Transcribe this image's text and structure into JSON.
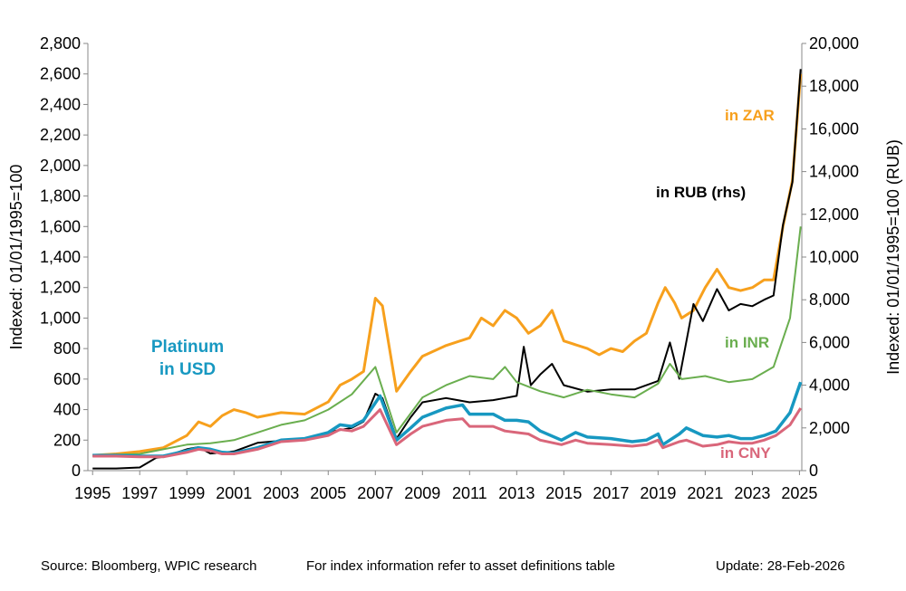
{
  "chart_data": {
    "type": "line",
    "xlim": [
      1994.8,
      2025.1
    ],
    "ylim_left": [
      0,
      2800
    ],
    "ylim_right": [
      0,
      20000
    ],
    "x_ticks": [
      1995,
      1997,
      1999,
      2001,
      2003,
      2005,
      2007,
      2009,
      2011,
      2013,
      2015,
      2017,
      2019,
      2021,
      2023,
      2025
    ],
    "y_ticks_left": [
      "0",
      "200",
      "400",
      "600",
      "800",
      "1,000",
      "1,200",
      "1,400",
      "1,600",
      "1,800",
      "2,000",
      "2,200",
      "2,400",
      "2,600",
      "2,800"
    ],
    "y_ticks_right": [
      "0",
      "2,000",
      "4,000",
      "6,000",
      "8,000",
      "10,000",
      "12,000",
      "14,000",
      "16,000",
      "18,000",
      "20,000"
    ],
    "ylabel_left": "Indexed: 01/01/1995=100",
    "ylabel_right": "Indexed: 01/01/1995=100 (RUB)",
    "grid": false,
    "series": [
      {
        "name": "in ZAR",
        "axis": "left",
        "color": "#F7A01D",
        "width": 3,
        "points": [
          [
            1995,
            100
          ],
          [
            1996,
            110
          ],
          [
            1997,
            125
          ],
          [
            1998,
            150
          ],
          [
            1999,
            230
          ],
          [
            1999.5,
            320
          ],
          [
            2000,
            290
          ],
          [
            2000.5,
            360
          ],
          [
            2001,
            400
          ],
          [
            2001.5,
            380
          ],
          [
            2002,
            350
          ],
          [
            2003,
            380
          ],
          [
            2004,
            370
          ],
          [
            2005,
            450
          ],
          [
            2005.5,
            560
          ],
          [
            2006,
            600
          ],
          [
            2006.5,
            650
          ],
          [
            2007,
            1130
          ],
          [
            2007.3,
            1080
          ],
          [
            2007.9,
            520
          ],
          [
            2008.5,
            650
          ],
          [
            2009,
            750
          ],
          [
            2010,
            820
          ],
          [
            2011,
            870
          ],
          [
            2011.5,
            1000
          ],
          [
            2012,
            950
          ],
          [
            2012.5,
            1050
          ],
          [
            2013,
            1000
          ],
          [
            2013.5,
            900
          ],
          [
            2014,
            950
          ],
          [
            2014.5,
            1050
          ],
          [
            2015,
            850
          ],
          [
            2016,
            800
          ],
          [
            2016.5,
            760
          ],
          [
            2017,
            800
          ],
          [
            2017.5,
            780
          ],
          [
            2018,
            850
          ],
          [
            2018.5,
            900
          ],
          [
            2019,
            1100
          ],
          [
            2019.3,
            1200
          ],
          [
            2019.7,
            1100
          ],
          [
            2020,
            1000
          ],
          [
            2020.5,
            1050
          ],
          [
            2021,
            1200
          ],
          [
            2021.5,
            1320
          ],
          [
            2022,
            1200
          ],
          [
            2022.5,
            1180
          ],
          [
            2023,
            1200
          ],
          [
            2023.5,
            1250
          ],
          [
            2023.9,
            1250
          ],
          [
            2024.3,
            1600
          ],
          [
            2024.7,
            1900
          ],
          [
            2025.05,
            2600
          ]
        ]
      },
      {
        "name": "in RUB (rhs)",
        "axis": "right",
        "color": "#000000",
        "width": 2,
        "points": [
          [
            1995,
            100
          ],
          [
            1996,
            100
          ],
          [
            1997,
            150
          ],
          [
            1997.7,
            600
          ],
          [
            1998,
            650
          ],
          [
            1999,
            1000
          ],
          [
            1999.5,
            1100
          ],
          [
            2000,
            800
          ],
          [
            2001,
            900
          ],
          [
            2002,
            1300
          ],
          [
            2003,
            1400
          ],
          [
            2004,
            1500
          ],
          [
            2005,
            1800
          ],
          [
            2006,
            2000
          ],
          [
            2006.5,
            2300
          ],
          [
            2007,
            3600
          ],
          [
            2007.3,
            3400
          ],
          [
            2007.9,
            1500
          ],
          [
            2008.5,
            2500
          ],
          [
            2009,
            3200
          ],
          [
            2010,
            3400
          ],
          [
            2011,
            3200
          ],
          [
            2012,
            3300
          ],
          [
            2012.5,
            3400
          ],
          [
            2013,
            3500
          ],
          [
            2013.3,
            5800
          ],
          [
            2013.6,
            4000
          ],
          [
            2014,
            4500
          ],
          [
            2014.5,
            5000
          ],
          [
            2015,
            4000
          ],
          [
            2016,
            3700
          ],
          [
            2017,
            3800
          ],
          [
            2018,
            3800
          ],
          [
            2019,
            4200
          ],
          [
            2019.5,
            6000
          ],
          [
            2019.9,
            4300
          ],
          [
            2020.5,
            7800
          ],
          [
            2020.9,
            7000
          ],
          [
            2021.5,
            8500
          ],
          [
            2022,
            7500
          ],
          [
            2022.5,
            7800
          ],
          [
            2023,
            7700
          ],
          [
            2023.5,
            8000
          ],
          [
            2023.9,
            8200
          ],
          [
            2024.3,
            11500
          ],
          [
            2024.7,
            13500
          ],
          [
            2025.05,
            18800
          ]
        ]
      },
      {
        "name": "in INR",
        "axis": "left",
        "color": "#6AAE4F",
        "width": 2,
        "points": [
          [
            1995,
            100
          ],
          [
            1997,
            110
          ],
          [
            1999,
            170
          ],
          [
            2000,
            180
          ],
          [
            2001,
            200
          ],
          [
            2002,
            250
          ],
          [
            2003,
            300
          ],
          [
            2004,
            330
          ],
          [
            2005,
            400
          ],
          [
            2006,
            500
          ],
          [
            2007,
            680
          ],
          [
            2007.9,
            250
          ],
          [
            2009,
            480
          ],
          [
            2010,
            560
          ],
          [
            2011,
            620
          ],
          [
            2012,
            600
          ],
          [
            2012.5,
            680
          ],
          [
            2013,
            580
          ],
          [
            2014,
            520
          ],
          [
            2015,
            480
          ],
          [
            2016,
            530
          ],
          [
            2017,
            500
          ],
          [
            2018,
            480
          ],
          [
            2019,
            570
          ],
          [
            2019.5,
            700
          ],
          [
            2020,
            600
          ],
          [
            2021,
            620
          ],
          [
            2022,
            580
          ],
          [
            2023,
            600
          ],
          [
            2023.9,
            680
          ],
          [
            2024.6,
            1000
          ],
          [
            2025.05,
            1600
          ]
        ]
      },
      {
        "name": "Platinum in USD",
        "axis": "left",
        "color": "#1798C1",
        "width": 3.5,
        "points": [
          [
            1995,
            100
          ],
          [
            1996,
            100
          ],
          [
            1997,
            95
          ],
          [
            1998,
            95
          ],
          [
            1999,
            130
          ],
          [
            1999.5,
            150
          ],
          [
            2000,
            140
          ],
          [
            2000.5,
            120
          ],
          [
            2001,
            115
          ],
          [
            2002,
            150
          ],
          [
            2003,
            200
          ],
          [
            2004,
            210
          ],
          [
            2005,
            250
          ],
          [
            2005.5,
            300
          ],
          [
            2006,
            290
          ],
          [
            2006.5,
            330
          ],
          [
            2007.2,
            490
          ],
          [
            2007.9,
            200
          ],
          [
            2008.5,
            280
          ],
          [
            2009,
            350
          ],
          [
            2010,
            410
          ],
          [
            2010.7,
            430
          ],
          [
            2011,
            370
          ],
          [
            2012,
            370
          ],
          [
            2012.5,
            330
          ],
          [
            2013,
            330
          ],
          [
            2013.5,
            320
          ],
          [
            2014,
            260
          ],
          [
            2014.9,
            200
          ],
          [
            2015.5,
            250
          ],
          [
            2016,
            220
          ],
          [
            2017,
            210
          ],
          [
            2017.9,
            190
          ],
          [
            2018.5,
            200
          ],
          [
            2019,
            240
          ],
          [
            2019.2,
            170
          ],
          [
            2019.9,
            240
          ],
          [
            2020.2,
            280
          ],
          [
            2020.9,
            230
          ],
          [
            2021.5,
            220
          ],
          [
            2022,
            230
          ],
          [
            2022.5,
            210
          ],
          [
            2023,
            210
          ],
          [
            2023.5,
            230
          ],
          [
            2024,
            260
          ],
          [
            2024.6,
            380
          ],
          [
            2025.05,
            580
          ]
        ]
      },
      {
        "name": "in CNY",
        "axis": "left",
        "color": "#D9667A",
        "width": 3,
        "points": [
          [
            1995,
            95
          ],
          [
            1996,
            95
          ],
          [
            1997,
            90
          ],
          [
            1998,
            90
          ],
          [
            1999,
            120
          ],
          [
            1999.5,
            140
          ],
          [
            2000,
            130
          ],
          [
            2000.5,
            110
          ],
          [
            2001,
            110
          ],
          [
            2002,
            140
          ],
          [
            2003,
            190
          ],
          [
            2004,
            200
          ],
          [
            2005,
            230
          ],
          [
            2005.5,
            270
          ],
          [
            2006,
            260
          ],
          [
            2006.5,
            290
          ],
          [
            2007.2,
            400
          ],
          [
            2007.9,
            170
          ],
          [
            2008.5,
            240
          ],
          [
            2009,
            290
          ],
          [
            2010,
            330
          ],
          [
            2010.7,
            340
          ],
          [
            2011,
            290
          ],
          [
            2012,
            290
          ],
          [
            2012.5,
            260
          ],
          [
            2013,
            250
          ],
          [
            2013.5,
            240
          ],
          [
            2014,
            200
          ],
          [
            2014.9,
            170
          ],
          [
            2015.5,
            200
          ],
          [
            2016,
            180
          ],
          [
            2017,
            170
          ],
          [
            2017.9,
            160
          ],
          [
            2018.5,
            170
          ],
          [
            2019,
            200
          ],
          [
            2019.2,
            150
          ],
          [
            2019.9,
            190
          ],
          [
            2020.2,
            200
          ],
          [
            2020.9,
            160
          ],
          [
            2021.5,
            170
          ],
          [
            2022,
            190
          ],
          [
            2022.5,
            180
          ],
          [
            2023,
            180
          ],
          [
            2023.5,
            200
          ],
          [
            2024,
            230
          ],
          [
            2024.6,
            300
          ],
          [
            2025.05,
            410
          ]
        ]
      }
    ],
    "annotations": {
      "zar": "in ZAR",
      "rub": "in RUB (rhs)",
      "inr": "in INR",
      "usd_line1": "Platinum",
      "usd_line2": "in USD",
      "cny": "in CNY"
    }
  },
  "footer": {
    "source": "Source: Bloomberg, WPIC research",
    "note": "For index information refer to asset definitions table",
    "update": "Update: 28-Feb-2026"
  }
}
